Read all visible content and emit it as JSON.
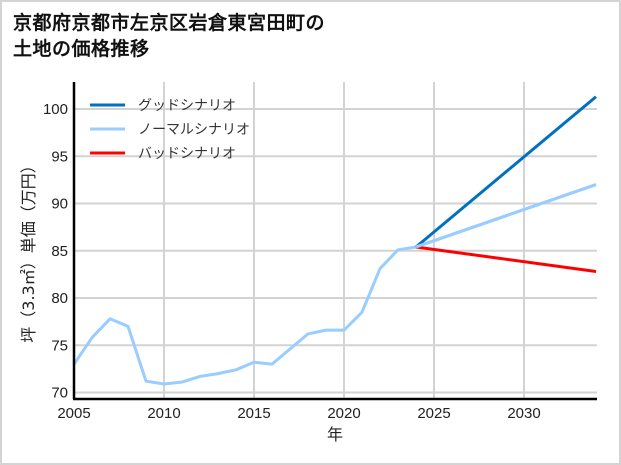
{
  "title": "京都府京都市左京区岩倉東宮田町の\n土地の価格推移",
  "chart_data": {
    "type": "line",
    "title": "京都府京都市左京区岩倉東宮田町の土地の価格推移",
    "xlabel": "年",
    "ylabel": "坪（3.3㎡）単価（万円）",
    "xlim": [
      2005,
      2034
    ],
    "ylim": [
      69.3,
      102.8
    ],
    "xticks": [
      2005,
      2010,
      2015,
      2020,
      2025,
      2030
    ],
    "yticks": [
      70,
      75,
      80,
      85,
      90,
      95,
      100
    ],
    "grid": true,
    "legend_position": "upper left",
    "series": [
      {
        "name": "グッドシナリオ",
        "color": "#0070c0",
        "x": [
          2024,
          2034
        ],
        "values": [
          85.4,
          101.3
        ]
      },
      {
        "name": "ノーマルシナリオ",
        "color": "#99ccff",
        "x": [
          2005,
          2006,
          2007,
          2008,
          2009,
          2010,
          2011,
          2012,
          2013,
          2014,
          2015,
          2016,
          2017,
          2018,
          2019,
          2020,
          2021,
          2022,
          2023,
          2024,
          2034
        ],
        "values": [
          73.0,
          75.8,
          77.8,
          77.0,
          71.2,
          70.9,
          71.1,
          71.7,
          72.0,
          72.4,
          73.2,
          73.0,
          74.6,
          76.2,
          76.6,
          76.6,
          78.5,
          83.1,
          85.1,
          85.4,
          92.0
        ]
      },
      {
        "name": "バッドシナリオ",
        "color": "#ff0000",
        "x": [
          2024,
          2034
        ],
        "values": [
          85.4,
          82.8
        ]
      }
    ]
  }
}
